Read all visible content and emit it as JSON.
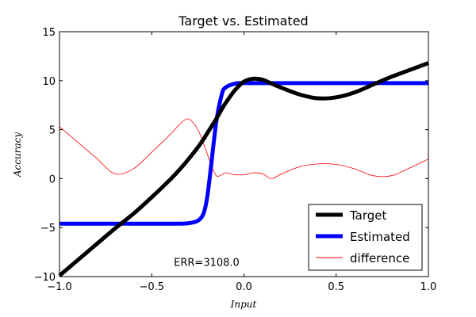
{
  "chart_data": {
    "type": "line",
    "title": "Target vs. Estimated",
    "xlabel": "Input",
    "ylabel": "Accuracy",
    "xlim": [
      -1.0,
      1.0
    ],
    "ylim": [
      -10,
      15
    ],
    "xticks": [
      -1.0,
      -0.5,
      0.0,
      0.5,
      1.0
    ],
    "xtick_labels": [
      "−1.0",
      "−0.5",
      "0.0",
      "0.5",
      "1.0"
    ],
    "yticks": [
      -10,
      -5,
      0,
      5,
      10,
      15
    ],
    "ytick_labels": [
      "−10",
      "−5",
      "0",
      "5",
      "10",
      "15"
    ],
    "grid": false,
    "legend_position": "lower-right",
    "annotation": {
      "text": "ERR=3108.0",
      "x": -0.38,
      "y": -8.9
    },
    "x": [
      -1.0,
      -0.9,
      -0.8,
      -0.7,
      -0.6,
      -0.5,
      -0.4,
      -0.35,
      -0.3,
      -0.25,
      -0.22,
      -0.2,
      -0.18,
      -0.15,
      -0.12,
      -0.1,
      -0.05,
      0.0,
      0.05,
      0.1,
      0.15,
      0.2,
      0.3,
      0.4,
      0.5,
      0.6,
      0.7,
      0.8,
      0.9,
      1.0
    ],
    "series": [
      {
        "name": "Target",
        "color": "#000000",
        "values": [
          -9.9,
          -8.3,
          -6.7,
          -5.1,
          -3.6,
          -1.9,
          -0.1,
          0.9,
          2.0,
          3.2,
          4.0,
          4.6,
          5.2,
          6.1,
          7.1,
          7.7,
          9.0,
          9.9,
          10.2,
          10.1,
          9.7,
          9.3,
          8.6,
          8.2,
          8.3,
          8.8,
          9.6,
          10.4,
          11.1,
          11.8
        ]
      },
      {
        "name": "Estimated",
        "color": "#0000ff",
        "values": [
          -4.6,
          -4.6,
          -4.6,
          -4.6,
          -4.6,
          -4.6,
          -4.6,
          -4.6,
          -4.55,
          -4.3,
          -3.6,
          -2.0,
          1.0,
          5.8,
          8.6,
          9.3,
          9.7,
          9.75,
          9.75,
          9.75,
          9.75,
          9.75,
          9.75,
          9.75,
          9.75,
          9.75,
          9.75,
          9.75,
          9.75,
          9.75
        ]
      },
      {
        "name": "difference",
        "color": "#ff0000",
        "values": [
          5.3,
          3.7,
          2.1,
          0.5,
          1.0,
          2.7,
          4.5,
          5.5,
          6.1,
          5.0,
          3.6,
          2.6,
          1.5,
          0.3,
          0.4,
          0.6,
          0.4,
          0.4,
          0.6,
          0.5,
          0.0,
          0.45,
          1.2,
          1.5,
          1.45,
          1.0,
          0.3,
          0.3,
          1.1,
          2.0
        ]
      }
    ]
  }
}
